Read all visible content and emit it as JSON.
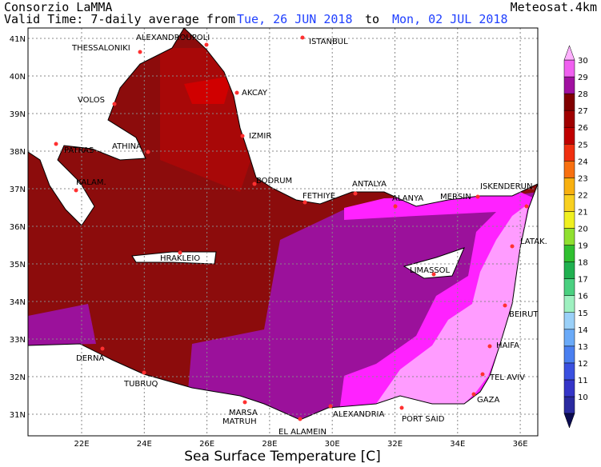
{
  "header": {
    "agency": "Consorzio LaMMA",
    "source": "Meteosat.4km",
    "valid_prefix": "Valid Time: 7-daily average from",
    "date_from": "Tue, 26 JUN 2018",
    "to": "to",
    "date_to": "Mon, 02 JUL 2018"
  },
  "axes": {
    "lon_ticks": [
      "22E",
      "24E",
      "26E",
      "28E",
      "30E",
      "32E",
      "34E",
      "36E"
    ],
    "lat_ticks": [
      "41N",
      "40N",
      "39N",
      "38N",
      "37N",
      "36N",
      "35N",
      "34N",
      "33N",
      "32N",
      "31N"
    ],
    "xlabel": "Sea Surface Temperature [C]"
  },
  "cities": [
    "ISTANBUL",
    "ALEXANDROUPOLI",
    "THESSALONIKI",
    "AKCAY",
    "VOLOS",
    "IZMIR",
    "PATRAS",
    "ATHINA",
    "BODRUM",
    "KALAM.",
    "FETHIYE",
    "ANTALYA",
    "ALANYA",
    "MERSIN",
    "ISKENDERUN",
    "LATAK.",
    "HRAKLEIO",
    "LIMASSOL",
    "BEIRUT",
    "HAIFA",
    "DERNA",
    "TEL AVIV",
    "TUBRUQ",
    "GAZA",
    "MARSA",
    "MATRUH",
    "ALEXANDRIA",
    "PORT SAID",
    "EL ALAMEIN"
  ],
  "colorbar": {
    "levels": [
      10,
      11,
      12,
      13,
      14,
      15,
      16,
      17,
      18,
      19,
      20,
      21,
      22,
      23,
      24,
      25,
      26,
      27,
      28,
      29,
      30
    ],
    "colors": [
      "#2a2aa0",
      "#3535c8",
      "#3a50e0",
      "#4a7ff0",
      "#6aaaf8",
      "#9ad0f8",
      "#9ef0c0",
      "#4ad080",
      "#20b050",
      "#30c030",
      "#90e030",
      "#f0f020",
      "#f8d020",
      "#f8b010",
      "#f87010",
      "#f03010",
      "#c00000",
      "#a00000",
      "#800000",
      "#a010a0",
      "#f060f0"
    ],
    "under": "#0b0b50",
    "over": "#ffb0ff"
  }
}
